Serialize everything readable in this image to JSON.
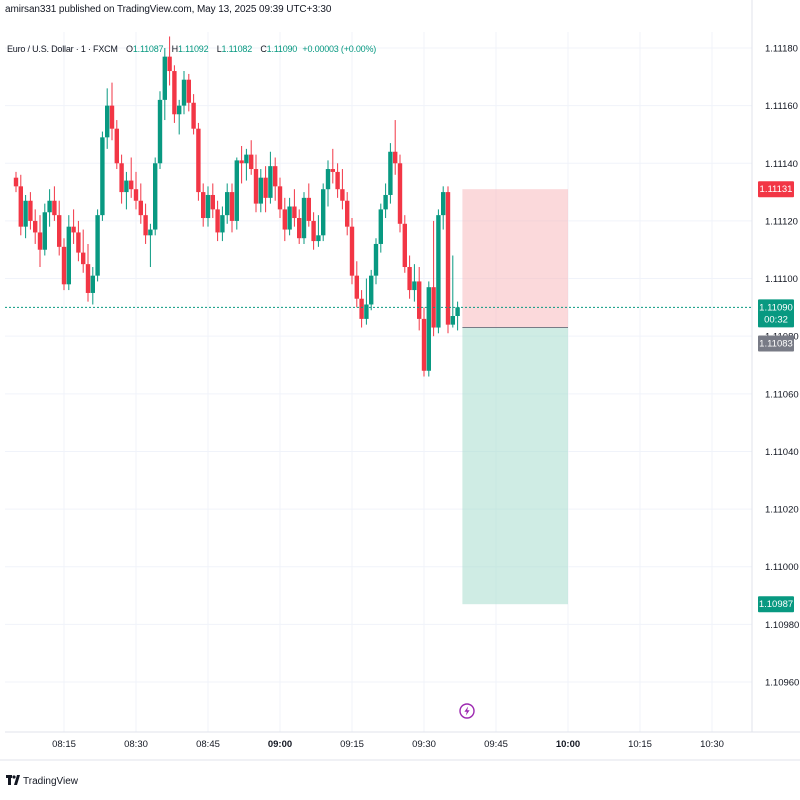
{
  "publish_info": "amirsan331 published on TradingView.com, May 13, 2025 09:39 UTC+3:30",
  "legend": {
    "symbol": "Euro / U.S. Dollar · 1 · FXCM",
    "open_label": "O",
    "open": "1.11087",
    "high_label": "H",
    "high": "1.11092",
    "low_label": "L",
    "low": "1.11082",
    "close_label": "C",
    "close": "1.11090",
    "change": "+0.00003 (+0.00%)"
  },
  "footer": {
    "logo_text": "TradingView"
  },
  "colors": {
    "up": "#089981",
    "down": "#f23645",
    "stop_zone": "#f7b9be",
    "target_zone": "#a8dccd",
    "grid": "#f0f3fa",
    "axis_text": "#131722"
  },
  "icons": {
    "flash": "lightning-bolt-icon",
    "logo": "tradingview-logo-icon"
  },
  "chart_data": {
    "type": "candlestick",
    "ylim": [
      1.1095,
      1.11185
    ],
    "y_ticks": [
      "1.11180",
      "1.11160",
      "1.11140",
      "1.11120",
      "1.11100",
      "1.11080",
      "1.11060",
      "1.11040",
      "1.11020",
      "1.11000",
      "1.10980",
      "1.10960"
    ],
    "y_tick_values": [
      1.1118,
      1.1116,
      1.1114,
      1.1112,
      1.111,
      1.1108,
      1.1106,
      1.1104,
      1.1102,
      1.11,
      1.1098,
      1.1096
    ],
    "x_ticks": [
      "08:15",
      "08:30",
      "08:45",
      "09:00",
      "09:15",
      "09:30",
      "09:45",
      "10:00",
      "10:15",
      "10:30"
    ],
    "x_tick_values": [
      "08:15",
      "08:30",
      "08:45",
      "09:00",
      "09:15",
      "09:30",
      "09:45",
      "10:00",
      "10:15",
      "10:30"
    ],
    "x_tick_bold": [
      "09:00",
      "10:00"
    ],
    "current_price": "1.11090",
    "current_price_value": 1.1109,
    "countdown": "00:32",
    "position": {
      "stop_price": "1.11131",
      "stop_value": 1.11131,
      "entry_price": "1.11083",
      "entry_value": 1.11083,
      "target_price": "1.10987",
      "target_value": 1.10987,
      "start_time": "09:38",
      "end_time": "10:00"
    },
    "candles": [
      {
        "t": "08:05",
        "o": 1.11135,
        "h": 1.11137,
        "l": 1.1113,
        "c": 1.11132
      },
      {
        "t": "08:06",
        "o": 1.11132,
        "h": 1.11136,
        "l": 1.11115,
        "c": 1.11118
      },
      {
        "t": "08:07",
        "o": 1.11118,
        "h": 1.11129,
        "l": 1.11114,
        "c": 1.11127
      },
      {
        "t": "08:08",
        "o": 1.11127,
        "h": 1.1113,
        "l": 1.11117,
        "c": 1.1112
      },
      {
        "t": "08:09",
        "o": 1.1112,
        "h": 1.11124,
        "l": 1.11112,
        "c": 1.11116
      },
      {
        "t": "08:10",
        "o": 1.11116,
        "h": 1.11122,
        "l": 1.11104,
        "c": 1.1111
      },
      {
        "t": "08:11",
        "o": 1.1111,
        "h": 1.11126,
        "l": 1.11108,
        "c": 1.11123
      },
      {
        "t": "08:12",
        "o": 1.11123,
        "h": 1.11131,
        "l": 1.11118,
        "c": 1.11127
      },
      {
        "t": "08:13",
        "o": 1.11127,
        "h": 1.11132,
        "l": 1.1112,
        "c": 1.11122
      },
      {
        "t": "08:14",
        "o": 1.11122,
        "h": 1.11127,
        "l": 1.11108,
        "c": 1.11111
      },
      {
        "t": "08:15",
        "o": 1.11111,
        "h": 1.11114,
        "l": 1.11096,
        "c": 1.11098
      },
      {
        "t": "08:16",
        "o": 1.11098,
        "h": 1.11122,
        "l": 1.11096,
        "c": 1.11118
      },
      {
        "t": "08:17",
        "o": 1.11118,
        "h": 1.11124,
        "l": 1.11112,
        "c": 1.11116
      },
      {
        "t": "08:18",
        "o": 1.11116,
        "h": 1.1112,
        "l": 1.11106,
        "c": 1.11109
      },
      {
        "t": "08:19",
        "o": 1.11109,
        "h": 1.11117,
        "l": 1.11102,
        "c": 1.11105
      },
      {
        "t": "08:20",
        "o": 1.11105,
        "h": 1.11112,
        "l": 1.11092,
        "c": 1.11095
      },
      {
        "t": "08:21",
        "o": 1.11095,
        "h": 1.11104,
        "l": 1.11091,
        "c": 1.11101
      },
      {
        "t": "08:22",
        "o": 1.11101,
        "h": 1.11124,
        "l": 1.11099,
        "c": 1.11122
      },
      {
        "t": "08:23",
        "o": 1.11122,
        "h": 1.11151,
        "l": 1.1112,
        "c": 1.11149
      },
      {
        "t": "08:24",
        "o": 1.11149,
        "h": 1.11166,
        "l": 1.11145,
        "c": 1.1116
      },
      {
        "t": "08:25",
        "o": 1.1116,
        "h": 1.11168,
        "l": 1.11148,
        "c": 1.11152
      },
      {
        "t": "08:26",
        "o": 1.11152,
        "h": 1.11155,
        "l": 1.11138,
        "c": 1.1114
      },
      {
        "t": "08:27",
        "o": 1.1114,
        "h": 1.11143,
        "l": 1.11126,
        "c": 1.1113
      },
      {
        "t": "08:28",
        "o": 1.1113,
        "h": 1.11137,
        "l": 1.11124,
        "c": 1.11134
      },
      {
        "t": "08:29",
        "o": 1.11134,
        "h": 1.11142,
        "l": 1.11128,
        "c": 1.11131
      },
      {
        "t": "08:30",
        "o": 1.11131,
        "h": 1.11137,
        "l": 1.11124,
        "c": 1.11127
      },
      {
        "t": "08:31",
        "o": 1.11127,
        "h": 1.11133,
        "l": 1.11119,
        "c": 1.11122
      },
      {
        "t": "08:32",
        "o": 1.11122,
        "h": 1.11126,
        "l": 1.11112,
        "c": 1.11115
      },
      {
        "t": "08:33",
        "o": 1.11115,
        "h": 1.11119,
        "l": 1.11104,
        "c": 1.11117
      },
      {
        "t": "08:34",
        "o": 1.11117,
        "h": 1.11142,
        "l": 1.11115,
        "c": 1.1114
      },
      {
        "t": "08:35",
        "o": 1.1114,
        "h": 1.11165,
        "l": 1.11138,
        "c": 1.11162
      },
      {
        "t": "08:36",
        "o": 1.11162,
        "h": 1.1118,
        "l": 1.11155,
        "c": 1.11177
      },
      {
        "t": "08:37",
        "o": 1.11177,
        "h": 1.11184,
        "l": 1.11167,
        "c": 1.11172
      },
      {
        "t": "08:38",
        "o": 1.11172,
        "h": 1.11174,
        "l": 1.11154,
        "c": 1.11157
      },
      {
        "t": "08:39",
        "o": 1.11157,
        "h": 1.11162,
        "l": 1.1115,
        "c": 1.1116
      },
      {
        "t": "08:40",
        "o": 1.1116,
        "h": 1.11172,
        "l": 1.11157,
        "c": 1.11169
      },
      {
        "t": "08:41",
        "o": 1.11169,
        "h": 1.11171,
        "l": 1.11158,
        "c": 1.11161
      },
      {
        "t": "08:42",
        "o": 1.11161,
        "h": 1.11164,
        "l": 1.1115,
        "c": 1.11152
      },
      {
        "t": "08:43",
        "o": 1.11152,
        "h": 1.11154,
        "l": 1.11127,
        "c": 1.1113
      },
      {
        "t": "08:44",
        "o": 1.1113,
        "h": 1.11133,
        "l": 1.11118,
        "c": 1.11121
      },
      {
        "t": "08:45",
        "o": 1.11121,
        "h": 1.11132,
        "l": 1.11118,
        "c": 1.11129
      },
      {
        "t": "08:46",
        "o": 1.11129,
        "h": 1.11133,
        "l": 1.11121,
        "c": 1.11124
      },
      {
        "t": "08:47",
        "o": 1.11124,
        "h": 1.11127,
        "l": 1.11113,
        "c": 1.11116
      },
      {
        "t": "08:48",
        "o": 1.11116,
        "h": 1.11125,
        "l": 1.11113,
        "c": 1.11122
      },
      {
        "t": "08:49",
        "o": 1.11122,
        "h": 1.11133,
        "l": 1.11119,
        "c": 1.1113
      },
      {
        "t": "08:50",
        "o": 1.1113,
        "h": 1.11133,
        "l": 1.11116,
        "c": 1.1112
      },
      {
        "t": "08:51",
        "o": 1.1112,
        "h": 1.11142,
        "l": 1.11117,
        "c": 1.11141
      },
      {
        "t": "08:52",
        "o": 1.11141,
        "h": 1.11146,
        "l": 1.11133,
        "c": 1.1114
      },
      {
        "t": "08:53",
        "o": 1.1114,
        "h": 1.11145,
        "l": 1.11134,
        "c": 1.11143
      },
      {
        "t": "08:54",
        "o": 1.11143,
        "h": 1.11148,
        "l": 1.11136,
        "c": 1.11138
      },
      {
        "t": "08:55",
        "o": 1.11138,
        "h": 1.11143,
        "l": 1.11123,
        "c": 1.11126
      },
      {
        "t": "08:56",
        "o": 1.11126,
        "h": 1.11138,
        "l": 1.11123,
        "c": 1.11135
      },
      {
        "t": "08:57",
        "o": 1.11135,
        "h": 1.11139,
        "l": 1.11123,
        "c": 1.11128
      },
      {
        "t": "08:58",
        "o": 1.11128,
        "h": 1.11144,
        "l": 1.11126,
        "c": 1.11139
      },
      {
        "t": "08:59",
        "o": 1.11139,
        "h": 1.11142,
        "l": 1.11127,
        "c": 1.11132
      },
      {
        "t": "09:00",
        "o": 1.11132,
        "h": 1.11135,
        "l": 1.11121,
        "c": 1.11124
      },
      {
        "t": "09:01",
        "o": 1.11124,
        "h": 1.11128,
        "l": 1.11113,
        "c": 1.11117
      },
      {
        "t": "09:02",
        "o": 1.11117,
        "h": 1.11128,
        "l": 1.11115,
        "c": 1.11125
      },
      {
        "t": "09:03",
        "o": 1.11125,
        "h": 1.11131,
        "l": 1.11118,
        "c": 1.11121
      },
      {
        "t": "09:04",
        "o": 1.11121,
        "h": 1.11124,
        "l": 1.11112,
        "c": 1.11114
      },
      {
        "t": "09:05",
        "o": 1.11114,
        "h": 1.1113,
        "l": 1.11112,
        "c": 1.11128
      },
      {
        "t": "09:06",
        "o": 1.11128,
        "h": 1.11133,
        "l": 1.11118,
        "c": 1.1112
      },
      {
        "t": "09:07",
        "o": 1.1112,
        "h": 1.11123,
        "l": 1.1111,
        "c": 1.11113
      },
      {
        "t": "09:08",
        "o": 1.11113,
        "h": 1.11122,
        "l": 1.11111,
        "c": 1.11115
      },
      {
        "t": "09:09",
        "o": 1.11115,
        "h": 1.11133,
        "l": 1.11113,
        "c": 1.11131
      },
      {
        "t": "09:10",
        "o": 1.11131,
        "h": 1.11141,
        "l": 1.11125,
        "c": 1.11138
      },
      {
        "t": "09:11",
        "o": 1.11138,
        "h": 1.11145,
        "l": 1.11133,
        "c": 1.11137
      },
      {
        "t": "09:12",
        "o": 1.11137,
        "h": 1.1114,
        "l": 1.11128,
        "c": 1.11131
      },
      {
        "t": "09:13",
        "o": 1.11131,
        "h": 1.11138,
        "l": 1.11124,
        "c": 1.11127
      },
      {
        "t": "09:14",
        "o": 1.11127,
        "h": 1.1113,
        "l": 1.11115,
        "c": 1.11118
      },
      {
        "t": "09:15",
        "o": 1.11118,
        "h": 1.11121,
        "l": 1.11098,
        "c": 1.11101
      },
      {
        "t": "09:16",
        "o": 1.11101,
        "h": 1.11106,
        "l": 1.1109,
        "c": 1.11093
      },
      {
        "t": "09:17",
        "o": 1.11093,
        "h": 1.11096,
        "l": 1.11083,
        "c": 1.11086
      },
      {
        "t": "09:18",
        "o": 1.11086,
        "h": 1.111,
        "l": 1.11084,
        "c": 1.11091
      },
      {
        "t": "09:19",
        "o": 1.11091,
        "h": 1.11103,
        "l": 1.11089,
        "c": 1.11101
      },
      {
        "t": "09:20",
        "o": 1.11101,
        "h": 1.11114,
        "l": 1.11098,
        "c": 1.11112
      },
      {
        "t": "09:21",
        "o": 1.11112,
        "h": 1.11126,
        "l": 1.11109,
        "c": 1.11124
      },
      {
        "t": "09:22",
        "o": 1.11124,
        "h": 1.11133,
        "l": 1.11121,
        "c": 1.11129
      },
      {
        "t": "09:23",
        "o": 1.11129,
        "h": 1.11147,
        "l": 1.11126,
        "c": 1.11144
      },
      {
        "t": "09:24",
        "o": 1.11144,
        "h": 1.11155,
        "l": 1.11136,
        "c": 1.1114
      },
      {
        "t": "09:25",
        "o": 1.1114,
        "h": 1.11143,
        "l": 1.11116,
        "c": 1.11119
      },
      {
        "t": "09:26",
        "o": 1.11119,
        "h": 1.11122,
        "l": 1.11102,
        "c": 1.11104
      },
      {
        "t": "09:27",
        "o": 1.11104,
        "h": 1.11108,
        "l": 1.11093,
        "c": 1.11096
      },
      {
        "t": "09:28",
        "o": 1.11096,
        "h": 1.11105,
        "l": 1.11092,
        "c": 1.11099
      },
      {
        "t": "09:29",
        "o": 1.11099,
        "h": 1.11104,
        "l": 1.11082,
        "c": 1.11086
      },
      {
        "t": "09:30",
        "o": 1.11086,
        "h": 1.1109,
        "l": 1.11066,
        "c": 1.11068
      },
      {
        "t": "09:31",
        "o": 1.11068,
        "h": 1.11099,
        "l": 1.11066,
        "c": 1.11097
      },
      {
        "t": "09:32",
        "o": 1.11097,
        "h": 1.1112,
        "l": 1.1108,
        "c": 1.11083
      },
      {
        "t": "09:33",
        "o": 1.11083,
        "h": 1.11124,
        "l": 1.11081,
        "c": 1.11122
      },
      {
        "t": "09:34",
        "o": 1.11122,
        "h": 1.11132,
        "l": 1.11117,
        "c": 1.1113
      },
      {
        "t": "09:35",
        "o": 1.1113,
        "h": 1.11132,
        "l": 1.11081,
        "c": 1.11084
      },
      {
        "t": "09:36",
        "o": 1.11084,
        "h": 1.11108,
        "l": 1.11083,
        "c": 1.11087
      },
      {
        "t": "09:37",
        "o": 1.11087,
        "h": 1.11092,
        "l": 1.11082,
        "c": 1.1109
      }
    ]
  }
}
